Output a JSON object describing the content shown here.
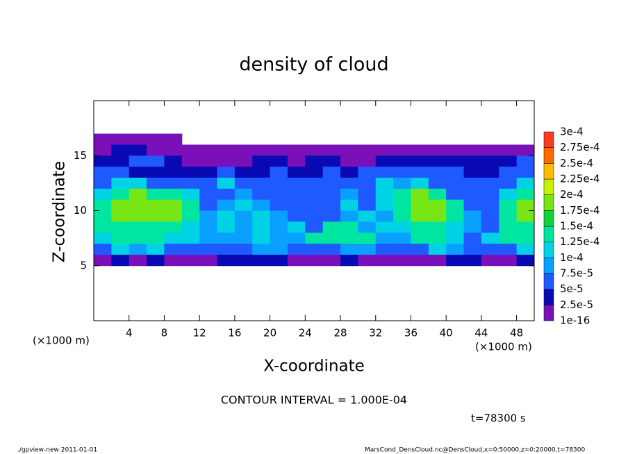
{
  "chart_data": {
    "type": "heatmap",
    "title": "density of cloud",
    "xlabel": "X-coordinate",
    "ylabel": "Z-coordinate",
    "xunit": "(×1000 m)",
    "contour_interval": "CONTOUR INTERVAL = 1.000E-04",
    "time_label": "t=78300 s",
    "footer_left": "./gpview-new   2011-01-01",
    "footer_right": "MarsCond_DensCloud.nc@DensCloud,x=0:50000,z=0:20000,t=78300",
    "xlim": [
      0,
      50
    ],
    "ylim": [
      0,
      20
    ],
    "xticks": [
      4,
      8,
      12,
      16,
      20,
      24,
      28,
      32,
      36,
      40,
      44,
      48
    ],
    "yticks": [
      5,
      10,
      15
    ],
    "x": [
      1,
      3,
      5,
      7,
      9,
      11,
      13,
      15,
      17,
      19,
      21,
      23,
      25,
      27,
      29,
      31,
      33,
      35,
      37,
      39,
      41,
      43,
      45,
      47,
      49
    ],
    "y": [
      16.5,
      15.5,
      14.5,
      13.5,
      12.5,
      11.5,
      10.5,
      9.5,
      8.5,
      7.5,
      6.5,
      5.5
    ],
    "values": [
      [
        1e-05,
        1e-05,
        1e-05,
        1e-05,
        1e-05,
        null,
        null,
        null,
        null,
        null,
        null,
        null,
        null,
        null,
        null,
        null,
        null,
        null,
        null,
        null,
        null,
        null,
        null,
        null,
        null
      ],
      [
        1e-05,
        4e-05,
        4e-05,
        1e-05,
        1e-05,
        1e-05,
        1e-05,
        1e-05,
        1e-05,
        1e-05,
        1e-05,
        1e-05,
        1e-05,
        1e-05,
        1e-05,
        1e-05,
        1e-05,
        1e-05,
        1e-05,
        1e-05,
        1e-05,
        1e-05,
        1e-05,
        1e-05,
        1e-05
      ],
      [
        4e-05,
        4e-05,
        6e-05,
        6e-05,
        4e-05,
        1e-05,
        1e-05,
        1e-05,
        1e-05,
        4e-05,
        4e-05,
        1e-05,
        4e-05,
        4e-05,
        1e-05,
        1e-05,
        4e-05,
        4e-05,
        4e-05,
        4e-05,
        4e-05,
        4e-05,
        4e-05,
        4e-05,
        6e-05
      ],
      [
        6e-05,
        6e-05,
        4e-05,
        4e-05,
        4e-05,
        4e-05,
        4e-05,
        6e-05,
        4e-05,
        4e-05,
        6e-05,
        4e-05,
        4e-05,
        6e-05,
        4e-05,
        6e-05,
        6e-05,
        6e-05,
        6e-05,
        6e-05,
        6e-05,
        4e-05,
        4e-05,
        6e-05,
        6e-05
      ],
      [
        6e-05,
        0.00011,
        0.00011,
        6e-05,
        6e-05,
        6e-05,
        6e-05,
        0.00011,
        6e-05,
        6e-05,
        6e-05,
        6e-05,
        6e-05,
        6e-05,
        6e-05,
        6e-05,
        0.00011,
        9e-05,
        0.00011,
        6e-05,
        6e-05,
        6e-05,
        6e-05,
        6e-05,
        0.00011
      ],
      [
        0.00011,
        0.00014,
        0.00019,
        0.00014,
        0.00014,
        0.00011,
        6e-05,
        6e-05,
        9e-05,
        6e-05,
        6e-05,
        6e-05,
        6e-05,
        6e-05,
        9e-05,
        6e-05,
        0.00011,
        0.00014,
        0.00019,
        0.00014,
        6e-05,
        6e-05,
        6e-05,
        0.00011,
        0.00014
      ],
      [
        0.00014,
        0.00019,
        0.00019,
        0.00019,
        0.00019,
        0.00014,
        6e-05,
        9e-05,
        0.00011,
        9e-05,
        6e-05,
        6e-05,
        6e-05,
        6e-05,
        0.00011,
        6e-05,
        0.00011,
        0.00014,
        0.00019,
        0.00019,
        0.00014,
        6e-05,
        6e-05,
        0.00014,
        0.00019
      ],
      [
        0.00014,
        0.00019,
        0.00019,
        0.00019,
        0.00019,
        0.00014,
        9e-05,
        0.00011,
        9e-05,
        0.00011,
        9e-05,
        6e-05,
        6e-05,
        6e-05,
        9e-05,
        0.00011,
        9e-05,
        0.00014,
        0.00019,
        0.00019,
        0.00014,
        9e-05,
        6e-05,
        0.00014,
        0.00019
      ],
      [
        0.00014,
        0.00014,
        0.00014,
        0.00014,
        0.00014,
        0.00011,
        9e-05,
        0.00011,
        9e-05,
        0.00011,
        9e-05,
        0.00011,
        6e-05,
        0.00014,
        0.00014,
        9e-05,
        0.00011,
        0.00011,
        0.00014,
        0.00014,
        0.00011,
        9e-05,
        6e-05,
        0.00014,
        0.00014
      ],
      [
        0.00011,
        0.00014,
        0.00014,
        0.00014,
        0.00011,
        0.00011,
        9e-05,
        9e-05,
        9e-05,
        0.00011,
        9e-05,
        9e-05,
        0.00014,
        0.00014,
        0.00014,
        0.00014,
        9e-05,
        9e-05,
        0.00014,
        0.00014,
        0.00011,
        6e-05,
        0.00011,
        0.00014,
        0.00014
      ],
      [
        6e-05,
        0.00011,
        9e-05,
        0.00011,
        6e-05,
        6e-05,
        6e-05,
        6e-05,
        6e-05,
        9e-05,
        9e-05,
        6e-05,
        6e-05,
        6e-05,
        9e-05,
        9e-05,
        6e-05,
        6e-05,
        6e-05,
        0.00011,
        9e-05,
        6e-05,
        6e-05,
        6e-05,
        0.00011
      ],
      [
        1e-05,
        4e-05,
        1e-05,
        4e-05,
        1e-05,
        1e-05,
        1e-05,
        4e-05,
        4e-05,
        4e-05,
        4e-05,
        1e-05,
        1e-05,
        1e-05,
        4e-05,
        1e-05,
        1e-05,
        1e-05,
        1e-05,
        1e-05,
        4e-05,
        4e-05,
        1e-05,
        1e-05,
        4e-05
      ]
    ],
    "levels": [
      {
        "value": 1e-16,
        "label": "1e-16"
      },
      {
        "value": 2.5e-05,
        "label": "2.5e-5"
      },
      {
        "value": 5e-05,
        "label": "5e-5"
      },
      {
        "value": 7.5e-05,
        "label": "7.5e-5"
      },
      {
        "value": 0.0001,
        "label": "1e-4"
      },
      {
        "value": 0.000125,
        "label": "1.25e-4"
      },
      {
        "value": 0.00015,
        "label": "1.5e-4"
      },
      {
        "value": 0.000175,
        "label": "1.75e-4"
      },
      {
        "value": 0.0002,
        "label": "2e-4"
      },
      {
        "value": 0.000225,
        "label": "2.25e-4"
      },
      {
        "value": 0.00025,
        "label": "2.5e-4"
      },
      {
        "value": 0.000275,
        "label": "2.75e-4"
      },
      {
        "value": 0.0003,
        "label": "3e-4"
      }
    ],
    "colors": [
      "#7a10b8",
      "#0a0ab4",
      "#1e5aff",
      "#0aa0ff",
      "#00d2e6",
      "#00e6a0",
      "#14d23c",
      "#78e614",
      "#c8f000",
      "#ffbe00",
      "#ff6a00",
      "#ff3a1e",
      "#ff8c8c"
    ]
  }
}
